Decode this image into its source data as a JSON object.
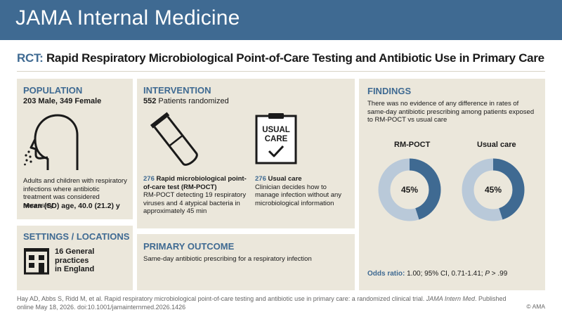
{
  "header": {
    "journal": "JAMA Internal Medicine"
  },
  "title": {
    "prefix": "RCT:",
    "text": "Rapid Respiratory Microbiological Point-of-Care Testing and Antibiotic Use in Primary Care"
  },
  "population": {
    "heading": "POPULATION",
    "counts": "203 Male, 349 Female",
    "description": "Adults and children with respiratory infections where antibiotic treatment was considered necessary",
    "age": "Mean (SD) age, 40.0 (21.2) y"
  },
  "settings": {
    "heading": "SETTINGS / LOCATIONS",
    "line1": "16 General",
    "line2": "practices",
    "line3": "in England"
  },
  "intervention": {
    "heading": "INTERVENTION",
    "randomized_n": "552",
    "randomized_label": " Patients randomized",
    "arm1": {
      "n": "276",
      "name": " Rapid microbiological point-of-care test (RM-POCT)",
      "detail": "RM-POCT detecting 19 respiratory viruses and 4 atypical bacteria in approximately 45 min"
    },
    "arm2": {
      "n": "276",
      "name": " Usual care",
      "detail": "Clinician decides how to manage infection without any microbiological information"
    },
    "clipboard_line1": "USUAL",
    "clipboard_line2": "CARE"
  },
  "outcome": {
    "heading": "PRIMARY OUTCOME",
    "text": "Same-day antibiotic prescribing for a respiratory infection"
  },
  "findings": {
    "heading": "FINDINGS",
    "text": "There was no evidence of any difference in rates of same-day antibiotic prescribing among patients exposed to RM-POCT vs usual care",
    "odds_label": "Odds ratio:",
    "odds_value": "1.00; 95% CI, 0.71-1.41; ",
    "p_label": "P",
    "p_value": " > .99"
  },
  "chart_data": {
    "type": "pie",
    "donuts": [
      {
        "label": "RM-POCT",
        "value": 45,
        "display": "45%"
      },
      {
        "label": "Usual care",
        "value": 45,
        "display": "45%"
      }
    ],
    "colors": {
      "filled": "#3f6a92",
      "remainder": "#b9c9d9"
    }
  },
  "footer": {
    "citation_1": "Hay AD, Abbs S, Ridd M, et al. Rapid respiratory microbiological point-of-care testing and antibiotic use in primary care: a randomized clinical trial. ",
    "journal_abbrev": "JAMA Intern Med",
    "citation_2": ". Published online May 18, 2026. doi:10.1001/jamainternmed.2026.1426",
    "copyright": "© AMA"
  },
  "colors": {
    "brand": "#3f6a92",
    "panel": "#ebe7db",
    "donut_light": "#b9c9d9"
  },
  "icons": [
    "head-profile-icon",
    "building-icon",
    "test-tube-icon",
    "clipboard-icon"
  ]
}
